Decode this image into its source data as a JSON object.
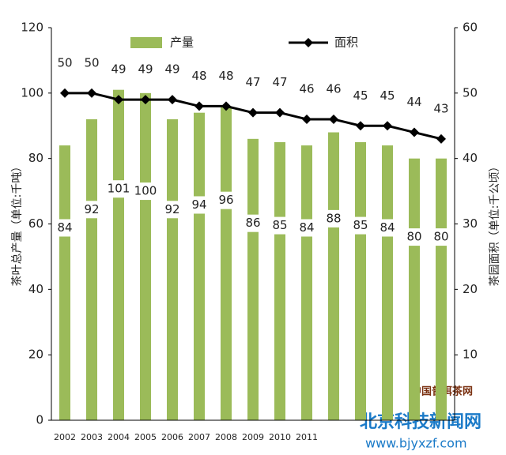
{
  "chart_data": {
    "type": "bar",
    "categories": [
      "2002",
      "2003",
      "2004",
      "2005",
      "2006",
      "2007",
      "2008",
      "2009",
      "2010",
      "2011",
      null,
      null,
      null,
      null,
      null
    ],
    "series": [
      {
        "name": "产量",
        "type": "bar",
        "color": "#9bbb59",
        "values": [
          84,
          92,
          101,
          100,
          92,
          94,
          96,
          86,
          85,
          84,
          88,
          85,
          84,
          80,
          80
        ]
      },
      {
        "name": "面积",
        "type": "line",
        "color": "#000000",
        "axis": "y2",
        "values": [
          50,
          50,
          49,
          49,
          49,
          48,
          48,
          47,
          47,
          46,
          46,
          45,
          45,
          44,
          43
        ]
      }
    ],
    "ylabel": "茶叶总产量（单位:千吨）",
    "y2label": "茶园面积（单位:千公顷）",
    "ylim": [
      0,
      120
    ],
    "yticks": [
      0,
      20,
      40,
      60,
      80,
      100,
      120
    ],
    "y2lim": [
      0,
      60
    ],
    "y2ticks": [
      10,
      20,
      30,
      40,
      50,
      60
    ],
    "grid": false,
    "watermark": [
      "中国普洱茶网",
      "北京科技新闻网",
      "www.bjyxzf.com"
    ]
  }
}
